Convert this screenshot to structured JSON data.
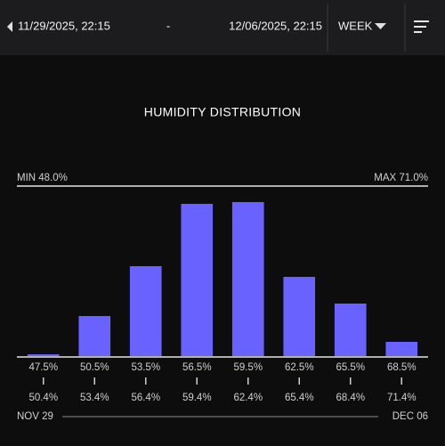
{
  "header": {
    "start": "11/29/2025, 22:15",
    "separator": "-",
    "end": "12/06/2025, 22:15",
    "period": "WEEK"
  },
  "chart_data": {
    "type": "bar",
    "title": "HUMIDITY DISTRIBUTION",
    "min_label": "MIN 48.0%",
    "max_label": "MAX 71.0%",
    "categories": [
      "47.5%",
      "50.5%",
      "53.5%",
      "56.5%",
      "59.5%",
      "62.5%",
      "65.5%",
      "68.5%"
    ],
    "bin_end_labels": [
      "50.4%",
      "53.4%",
      "56.4%",
      "59.4%",
      "62.4%",
      "65.4%",
      "68.4%",
      "71.4%"
    ],
    "values": [
      2,
      45,
      101,
      171,
      173,
      89,
      59,
      16
    ],
    "color": "#6a62ff",
    "ylim": [
      0,
      190
    ],
    "start_label": "NOV 29",
    "end_label": "DEC 06"
  }
}
